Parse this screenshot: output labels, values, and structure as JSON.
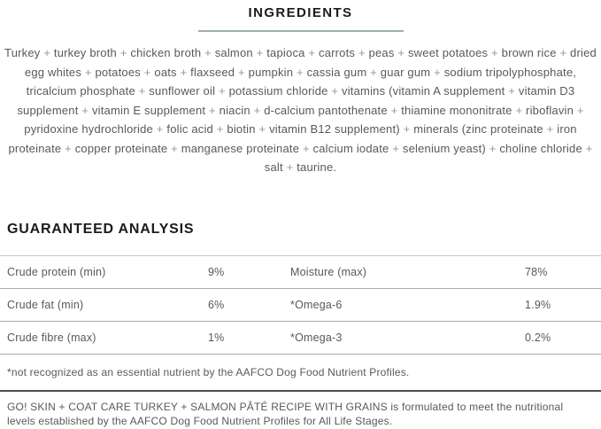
{
  "ingredients": {
    "heading": "INGREDIENTS",
    "text": "Turkey + turkey broth + chicken broth + salmon + tapioca + carrots + peas + sweet potatoes + brown rice + dried egg whites + potatoes + oats + flaxseed + pumpkin + cassia gum + guar gum + sodium tripolyphosphate, tricalcium phosphate + sunflower oil + potassium chloride + vitamins (vitamin A supplement + vitamin D3 supplement + vitamin E supplement + niacin + d-calcium pantothenate + thiamine mononitrate + riboflavin + pyridoxine hydrochloride + folic acid + biotin + vitamin B12 supplement) + minerals (zinc proteinate + iron proteinate + copper proteinate + manganese proteinate + calcium iodate + selenium yeast) + choline chloride + salt + taurine."
  },
  "guaranteed_analysis": {
    "heading": "GUARANTEED ANALYSIS",
    "rows": [
      {
        "label1": "Crude protein (min)",
        "value1": "9%",
        "label2": "Moisture (max)",
        "value2": "78%"
      },
      {
        "label1": "Crude fat (min)",
        "value1": "6%",
        "label2": "*Omega-6",
        "value2": "1.9%"
      },
      {
        "label1": "Crude fibre (max)",
        "value1": "1%",
        "label2": "*Omega-3",
        "value2": "0.2%"
      }
    ],
    "footnote": "*not recognized as an essential nutrient by the AAFCO Dog Food Nutrient Profiles."
  },
  "formulation_statement": "GO! SKIN + COAT CARE TURKEY + SALMON PÂTÉ RECIPE WITH GRAINS is formulated to meet the nutritional levels established by the AAFCO Dog Food Nutrient Profiles for All Life Stages.",
  "colors": {
    "accent_teal": "#7FA39C",
    "underline_teal": "#9DAFA9",
    "heading_text": "#1b1b1d",
    "body_text": "#58595b",
    "row_divider": "#ababab",
    "table_top_divider": "#c9c9c9",
    "section_divider": "#4f4f51"
  }
}
